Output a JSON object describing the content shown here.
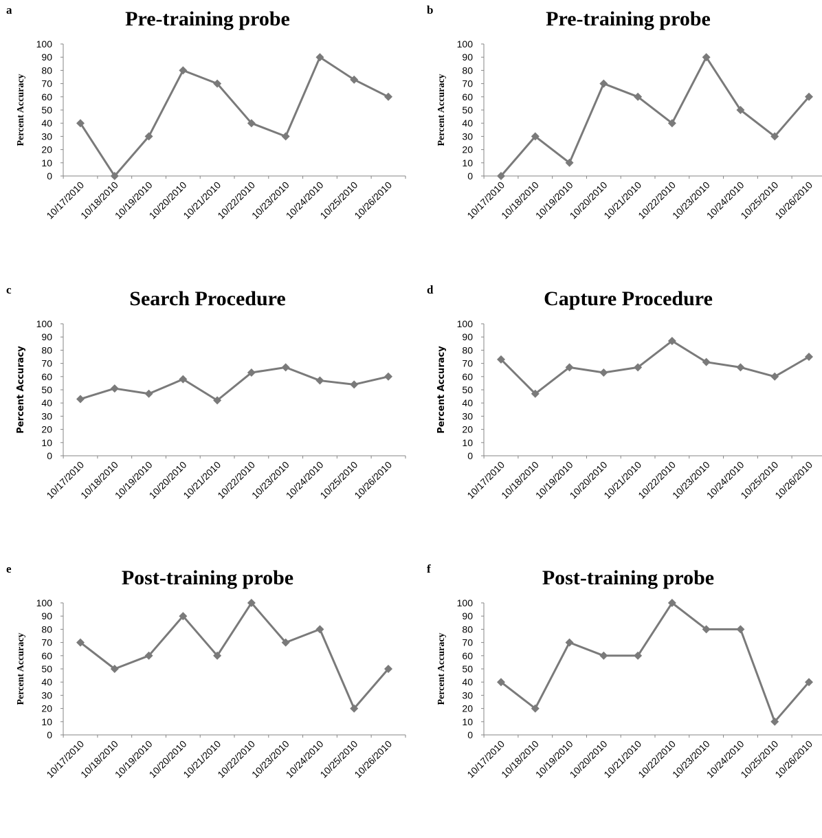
{
  "chart_data": [
    {
      "type": "line",
      "panel_label": "a",
      "title": "Pre-training probe",
      "ylabel": "Percent Accuracy",
      "xlabel": "",
      "ylim": [
        0,
        100
      ],
      "yticks": [
        0,
        10,
        20,
        30,
        40,
        50,
        60,
        70,
        80,
        90,
        100
      ],
      "grid": false,
      "categories": [
        "10/17/2010",
        "10/18/2010",
        "10/19/2010",
        "10/20/2010",
        "10/21/2010",
        "10/22/2010",
        "10/23/2010",
        "10/24/2010",
        "10/25/2010",
        "10/26/2010"
      ],
      "values": [
        40,
        0,
        30,
        80,
        70,
        40,
        30,
        90,
        73,
        60
      ],
      "color": "#7a7a7a",
      "marker": "diamond"
    },
    {
      "type": "line",
      "panel_label": "b",
      "title": "Pre-training probe",
      "ylabel": "Percent Accuracy",
      "xlabel": "",
      "ylim": [
        0,
        100
      ],
      "yticks": [
        0,
        10,
        20,
        30,
        40,
        50,
        60,
        70,
        80,
        90,
        100
      ],
      "grid": false,
      "categories": [
        "10/17/2010",
        "10/18/2010",
        "10/19/2010",
        "10/20/2010",
        "10/21/2010",
        "10/22/2010",
        "10/23/2010",
        "10/24/2010",
        "10/25/2010",
        "10/26/2010"
      ],
      "values": [
        0,
        30,
        10,
        70,
        60,
        40,
        90,
        50,
        30,
        60
      ],
      "color": "#7a7a7a",
      "marker": "diamond"
    },
    {
      "type": "line",
      "panel_label": "c",
      "title": "Search Procedure",
      "ylabel": "Percent Accuracy",
      "xlabel": "",
      "ylim": [
        0,
        100
      ],
      "yticks": [
        0,
        10,
        20,
        30,
        40,
        50,
        60,
        70,
        80,
        90,
        100
      ],
      "grid": false,
      "categories": [
        "10/17/2010",
        "10/18/2010",
        "10/19/2010",
        "10/20/2010",
        "10/21/2010",
        "10/22/2010",
        "10/23/2010",
        "10/24/2010",
        "10/25/2010",
        "10/26/2010"
      ],
      "values": [
        43,
        51,
        47,
        58,
        42,
        63,
        67,
        57,
        54,
        60
      ],
      "color": "#7a7a7a",
      "marker": "diamond"
    },
    {
      "type": "line",
      "panel_label": "d",
      "title": "Capture Procedure",
      "ylabel": "Percent Accuracy",
      "xlabel": "",
      "ylim": [
        0,
        100
      ],
      "yticks": [
        0,
        10,
        20,
        30,
        40,
        50,
        60,
        70,
        80,
        90,
        100
      ],
      "grid": false,
      "categories": [
        "10/17/2010",
        "10/18/2010",
        "10/19/2010",
        "10/20/2010",
        "10/21/2010",
        "10/22/2010",
        "10/23/2010",
        "10/24/2010",
        "10/25/2010",
        "10/26/2010"
      ],
      "values": [
        73,
        47,
        67,
        63,
        67,
        87,
        71,
        67,
        60,
        75
      ],
      "color": "#7a7a7a",
      "marker": "diamond"
    },
    {
      "type": "line",
      "panel_label": "e",
      "title": "Post-training probe",
      "ylabel": "Percent Accuracy",
      "xlabel": "",
      "ylim": [
        0,
        100
      ],
      "yticks": [
        0,
        10,
        20,
        30,
        40,
        50,
        60,
        70,
        80,
        90,
        100
      ],
      "grid": false,
      "categories": [
        "10/17/2010",
        "10/18/2010",
        "10/19/2010",
        "10/20/2010",
        "10/21/2010",
        "10/22/2010",
        "10/23/2010",
        "10/24/2010",
        "10/25/2010",
        "10/26/2010"
      ],
      "values": [
        70,
        50,
        60,
        90,
        60,
        100,
        70,
        80,
        20,
        50
      ],
      "color": "#7a7a7a",
      "marker": "diamond"
    },
    {
      "type": "line",
      "panel_label": "f",
      "title": "Post-training probe",
      "ylabel": "Percent Accuracy",
      "xlabel": "",
      "ylim": [
        0,
        100
      ],
      "yticks": [
        0,
        10,
        20,
        30,
        40,
        50,
        60,
        70,
        80,
        90,
        100
      ],
      "grid": false,
      "categories": [
        "10/17/2010",
        "10/18/2010",
        "10/19/2010",
        "10/20/2010",
        "10/21/2010",
        "10/22/2010",
        "10/23/2010",
        "10/24/2010",
        "10/25/2010",
        "10/26/2010"
      ],
      "values": [
        40,
        20,
        70,
        60,
        60,
        100,
        80,
        80,
        10,
        40
      ],
      "color": "#7a7a7a",
      "marker": "diamond"
    }
  ]
}
